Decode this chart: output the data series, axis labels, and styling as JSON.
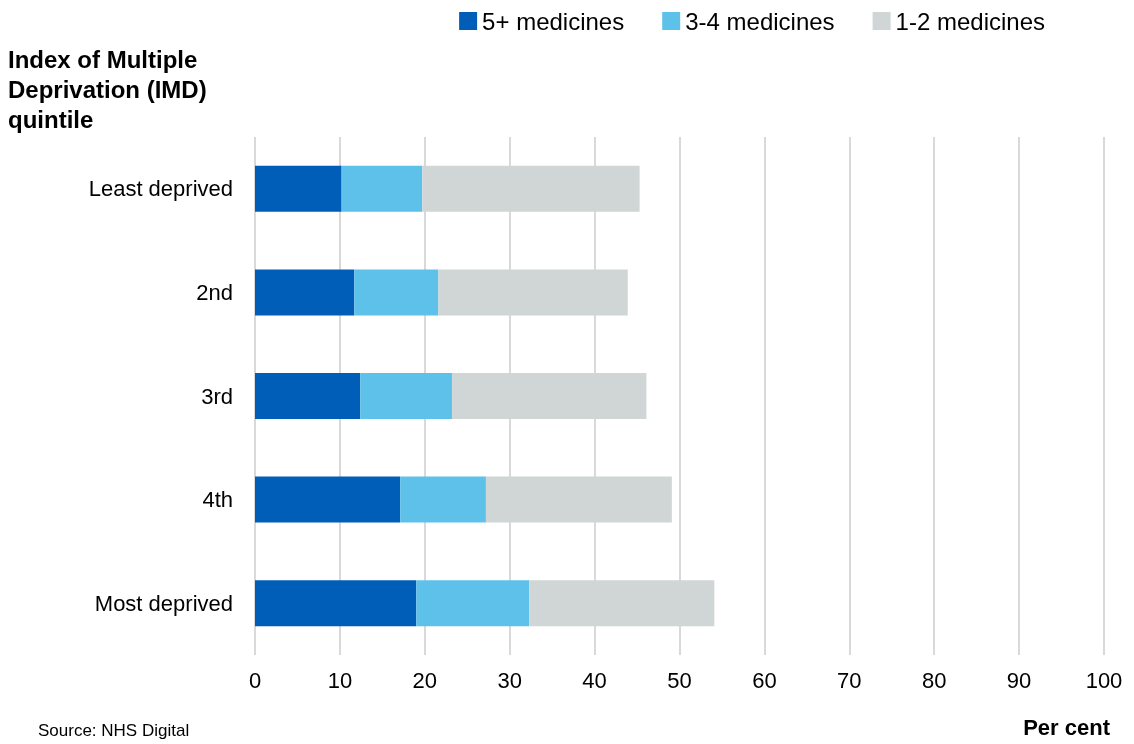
{
  "chart_data": {
    "type": "bar",
    "orientation": "horizontal",
    "stacked": true,
    "ylabel": "Index of Multiple\nDeprivation (IMD)\nquintile",
    "xlabel": "Per cent",
    "annotations": [
      "Source: NHS Digital"
    ],
    "categories": [
      "Least deprived",
      "2nd",
      "3rd",
      "4th",
      "Most deprived"
    ],
    "series": [
      {
        "name": "5+ medicines",
        "color": "#005eb8",
        "values": [
          10.2,
          11.7,
          12.4,
          17.1,
          19.0
        ]
      },
      {
        "name": "3-4 medicines",
        "color": "#5dc1ea",
        "values": [
          9.5,
          9.9,
          10.8,
          10.1,
          13.3
        ]
      },
      {
        "name": "1-2 medicines",
        "color": "#d0d5d6",
        "values": [
          25.6,
          22.3,
          22.9,
          21.9,
          21.8
        ]
      }
    ],
    "xlim": [
      0,
      100
    ],
    "xticks": [
      0,
      10,
      20,
      30,
      40,
      50,
      60,
      70,
      80,
      90,
      100
    ],
    "grid": "x",
    "legend": "top right"
  }
}
